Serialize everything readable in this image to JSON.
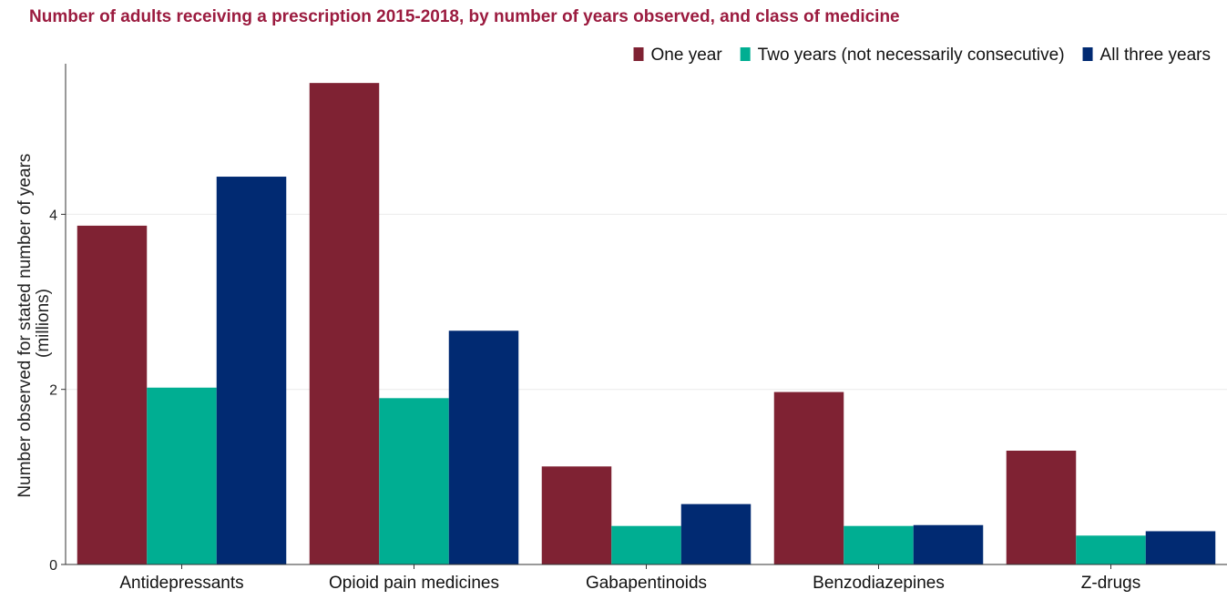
{
  "chart_data": {
    "type": "bar",
    "title": "Number of adults receiving a prescription 2015-2018, by number of years observed, and class of medicine",
    "ylabel_lines": [
      "Number observed for stated number of years",
      "(millions)"
    ],
    "xlabel": "",
    "categories": [
      "Antidepressants",
      "Opioid pain medicines",
      "Gabapentinoids",
      "Benzodiazepines",
      "Z-drugs"
    ],
    "series": [
      {
        "name": "One year",
        "color": "#7f2233",
        "values": [
          3.87,
          5.5,
          1.12,
          1.97,
          1.3
        ]
      },
      {
        "name": "Two years (not necessarily consecutive)",
        "color": "#00ae92",
        "values": [
          2.02,
          1.9,
          0.44,
          0.44,
          0.33
        ]
      },
      {
        "name": "All three years",
        "color": "#012a72",
        "values": [
          4.43,
          2.67,
          0.69,
          0.45,
          0.38
        ]
      }
    ],
    "yticks": [
      0,
      2,
      4
    ],
    "ylim": [
      0,
      5.72
    ],
    "grid": "horizontal",
    "legend_position": "top-right"
  }
}
